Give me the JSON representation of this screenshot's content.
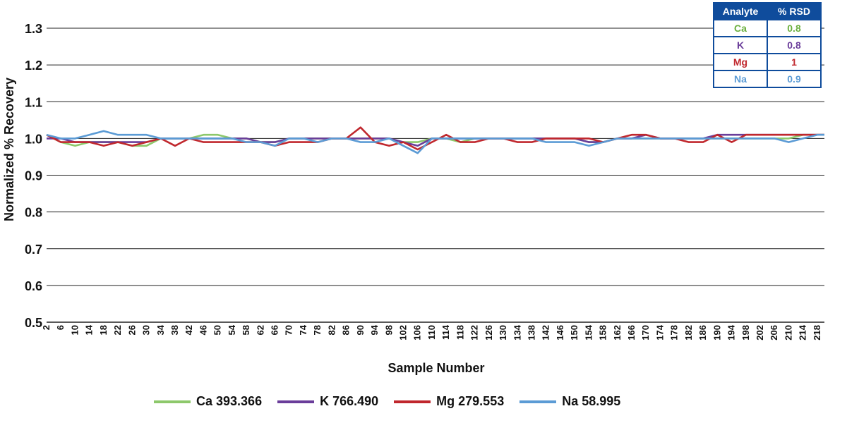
{
  "chart_data": {
    "type": "line",
    "xlabel": "Sample Number",
    "ylabel": "Normalized % Recovery",
    "ylim": [
      0.5,
      1.3
    ],
    "yticks": [
      "0.5",
      "0.6",
      "0.7",
      "0.8",
      "0.9",
      "1.0",
      "1.1",
      "1.2",
      "1.3"
    ],
    "xlim": [
      2,
      220
    ],
    "xticks": [
      "2",
      "6",
      "10",
      "14",
      "18",
      "22",
      "26",
      "30",
      "34",
      "38",
      "42",
      "46",
      "50",
      "54",
      "58",
      "62",
      "66",
      "70",
      "74",
      "78",
      "82",
      "86",
      "90",
      "94",
      "98",
      "102",
      "106",
      "110",
      "114",
      "118",
      "122",
      "126",
      "130",
      "134",
      "138",
      "142",
      "146",
      "150",
      "154",
      "158",
      "162",
      "166",
      "170",
      "174",
      "178",
      "182",
      "186",
      "190",
      "194",
      "198",
      "202",
      "206",
      "210",
      "214",
      "218"
    ],
    "grid": "horizontal",
    "legend_position": "bottom",
    "x": [
      2,
      6,
      10,
      14,
      18,
      22,
      26,
      30,
      34,
      38,
      42,
      46,
      50,
      54,
      58,
      62,
      66,
      70,
      74,
      78,
      82,
      86,
      90,
      94,
      98,
      102,
      106,
      110,
      114,
      118,
      122,
      126,
      130,
      134,
      138,
      142,
      146,
      150,
      154,
      158,
      162,
      166,
      170,
      174,
      178,
      182,
      186,
      190,
      194,
      198,
      202,
      206,
      210,
      214,
      218,
      220
    ],
    "series": [
      {
        "name": "Ca 393.366",
        "color": "#8dc86b",
        "values": [
          1.01,
          0.99,
          0.98,
          0.99,
          0.99,
          0.99,
          0.98,
          0.98,
          1.0,
          1.0,
          1.0,
          1.01,
          1.01,
          1.0,
          1.0,
          0.99,
          0.99,
          1.0,
          1.0,
          1.0,
          1.0,
          1.0,
          1.0,
          1.0,
          1.0,
          0.99,
          0.99,
          1.0,
          1.0,
          0.99,
          1.0,
          1.0,
          1.0,
          1.0,
          1.0,
          1.0,
          1.0,
          1.0,
          0.99,
          0.99,
          1.0,
          1.0,
          1.0,
          1.0,
          1.0,
          1.0,
          1.0,
          1.0,
          1.0,
          1.0,
          1.0,
          1.0,
          1.0,
          1.01,
          1.01,
          1.01
        ]
      },
      {
        "name": "K 766.490",
        "color": "#6a3d9a",
        "values": [
          1.0,
          1.0,
          0.99,
          0.99,
          0.99,
          0.99,
          0.99,
          0.99,
          1.0,
          1.0,
          1.0,
          1.0,
          1.0,
          1.0,
          1.0,
          0.99,
          0.99,
          1.0,
          1.0,
          1.0,
          1.0,
          1.0,
          1.0,
          1.0,
          1.0,
          0.99,
          0.98,
          1.0,
          1.0,
          1.0,
          1.0,
          1.0,
          1.0,
          1.0,
          1.0,
          1.0,
          1.0,
          1.0,
          0.99,
          0.99,
          1.0,
          1.0,
          1.01,
          1.0,
          1.0,
          1.0,
          1.0,
          1.01,
          1.01,
          1.01,
          1.01,
          1.01,
          1.01,
          1.01,
          1.01,
          1.01
        ]
      },
      {
        "name": "Mg 279.553",
        "color": "#c0272d",
        "values": [
          1.01,
          0.99,
          0.99,
          0.99,
          0.98,
          0.99,
          0.98,
          0.99,
          1.0,
          0.98,
          1.0,
          0.99,
          0.99,
          0.99,
          0.99,
          0.99,
          0.98,
          0.99,
          0.99,
          0.99,
          1.0,
          1.0,
          1.03,
          0.99,
          0.98,
          0.99,
          0.97,
          0.99,
          1.01,
          0.99,
          0.99,
          1.0,
          1.0,
          0.99,
          0.99,
          1.0,
          1.0,
          1.0,
          1.0,
          0.99,
          1.0,
          1.01,
          1.01,
          1.0,
          1.0,
          0.99,
          0.99,
          1.01,
          0.99,
          1.01,
          1.01,
          1.01,
          1.01,
          1.01,
          1.01,
          1.01
        ]
      },
      {
        "name": "Na 58.995",
        "color": "#5b9bd5",
        "values": [
          1.01,
          1.0,
          1.0,
          1.01,
          1.02,
          1.01,
          1.01,
          1.01,
          1.0,
          1.0,
          1.0,
          1.0,
          1.0,
          1.0,
          0.99,
          0.99,
          0.98,
          1.0,
          1.0,
          0.99,
          1.0,
          1.0,
          0.99,
          0.99,
          1.0,
          0.98,
          0.96,
          1.0,
          1.0,
          1.0,
          1.0,
          1.0,
          1.0,
          1.0,
          1.0,
          0.99,
          0.99,
          0.99,
          0.98,
          0.99,
          1.0,
          1.0,
          1.0,
          1.0,
          1.0,
          1.0,
          1.0,
          1.0,
          1.0,
          1.0,
          1.0,
          1.0,
          0.99,
          1.0,
          1.01,
          1.01
        ]
      }
    ]
  },
  "rsd_table": {
    "headers": [
      "Analyte",
      "% RSD"
    ],
    "rows": [
      {
        "analyte": "Ca",
        "rsd": "0.8",
        "color": "#6aaf3d"
      },
      {
        "analyte": "K",
        "rsd": "0.8",
        "color": "#6a3d9a"
      },
      {
        "analyte": "Mg",
        "rsd": "1",
        "color": "#c0272d"
      },
      {
        "analyte": "Na",
        "rsd": "0.9",
        "color": "#5b9bd5"
      }
    ]
  }
}
